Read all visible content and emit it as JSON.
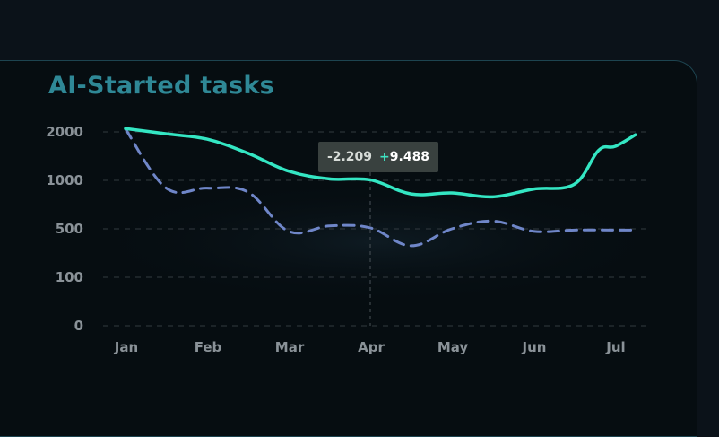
{
  "title": "AI-Started tasks",
  "tooltip": {
    "month": "Apr",
    "value_a": "-2.209",
    "value_b_sign": "+",
    "value_b": "9.488"
  },
  "colors": {
    "series_solid": "#34e6c3",
    "series_dashed": "#6f86c8",
    "grid": "#333a40",
    "title": "#2f8896"
  },
  "chart_data": {
    "type": "line",
    "title": "AI-Started tasks",
    "xlabel": "",
    "ylabel": "",
    "x": [
      "Jan",
      "Feb",
      "Mar",
      "Apr",
      "May",
      "Jun",
      "Jul"
    ],
    "y_ticks": [
      2000,
      1000,
      500,
      100,
      0
    ],
    "y_scale": "categorical-band",
    "grid": "horizontal-dashed",
    "series": [
      {
        "style": "solid",
        "points": [
          [
            0,
            2070
          ],
          [
            0.5,
            1960
          ],
          [
            1,
            1850
          ],
          [
            1.5,
            1560
          ],
          [
            2,
            1190
          ],
          [
            2.5,
            1030
          ],
          [
            3,
            1010
          ],
          [
            3.5,
            860
          ],
          [
            4,
            870
          ],
          [
            4.5,
            830
          ],
          [
            5,
            910
          ],
          [
            5.5,
            960
          ],
          [
            5.8,
            1620
          ],
          [
            6,
            1700
          ],
          [
            6.25,
            1940
          ]
        ]
      },
      {
        "style": "dashed",
        "points": [
          [
            0,
            2060
          ],
          [
            0.5,
            920
          ],
          [
            1,
            920
          ],
          [
            1.5,
            880
          ],
          [
            2,
            480
          ],
          [
            2.5,
            530
          ],
          [
            3,
            510
          ],
          [
            3.5,
            360
          ],
          [
            4,
            500
          ],
          [
            4.5,
            580
          ],
          [
            5,
            480
          ],
          [
            5.5,
            490
          ],
          [
            6,
            490
          ],
          [
            6.25,
            490
          ]
        ]
      }
    ],
    "annotation": {
      "x": "Apr",
      "label_a": "-2.209",
      "label_b": "+9.488"
    }
  }
}
